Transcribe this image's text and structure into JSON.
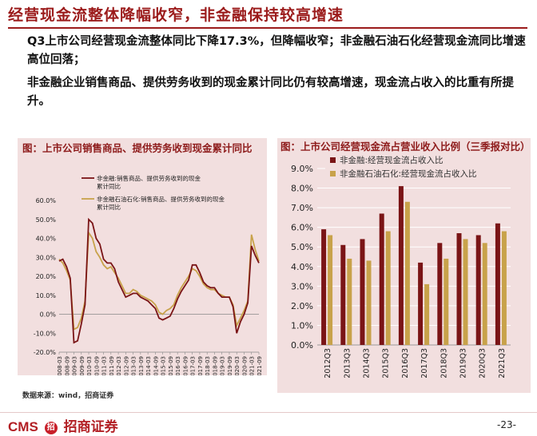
{
  "title": "经营现金流整体降幅收窄，非金融保持较高增速",
  "bullets": [
    "Q3上市公司经营现金流整体同比下降17.3%，但降幅收窄；非金融石油石化经营现金流同比增速高位回落；",
    "非金融企业销售商品、提供劳务收到的现金累计同比仍有较高增速，现金流占收入的比重有所提升。"
  ],
  "colors": {
    "accent": "#9b1b1b",
    "series_dark": "#7a1416",
    "series_gold": "#c8a24a",
    "panel_bg": "#f2dfdf"
  },
  "chart1": {
    "title": "图：上市公司销售商品、提供劳务收到现金累计同比",
    "legend": [
      "非金融:销售商品、提供劳务收到的现金累计同比",
      "非金融石油石化:销售商品、提供劳务收到的现金累计同比"
    ]
  },
  "chart2": {
    "title": "图：上市公司经营现金流占营业收入比例（三季报对比）",
    "legend": [
      "非金融:经营现金流占收入比",
      "非金融石油石化:经营现金流占收入比"
    ]
  },
  "source": "数据来源：wind，招商证券",
  "logo": {
    "cms": "CMS",
    "mark": "招",
    "name": "招商证券"
  },
  "page_number": "-23-",
  "chart_data": [
    {
      "type": "line",
      "title": "图：上市公司销售商品、提供劳务收到现金累计同比",
      "x": [
        "2008-03",
        "2008-06",
        "2008-09",
        "2008-12",
        "2009-03",
        "2009-06",
        "2009-09",
        "2009-12",
        "2010-03",
        "2010-06",
        "2010-09",
        "2010-12",
        "2011-03",
        "2011-06",
        "2011-09",
        "2011-12",
        "2012-03",
        "2012-06",
        "2012-09",
        "2012-12",
        "2013-03",
        "2013-06",
        "2013-09",
        "2013-12",
        "2014-03",
        "2014-06",
        "2014-09",
        "2014-12",
        "2015-03",
        "2015-06",
        "2015-09",
        "2015-12",
        "2016-03",
        "2016-06",
        "2016-09",
        "2016-12",
        "2017-03",
        "2017-06",
        "2017-09",
        "2017-12",
        "2018-03",
        "2018-06",
        "2018-09",
        "2018-12",
        "2019-03",
        "2019-06",
        "2019-09",
        "2019-12",
        "2020-03",
        "2020-06",
        "2020-09",
        "2020-12",
        "2021-03",
        "2021-06",
        "2021-09"
      ],
      "x_ticks": [
        "2008-03",
        "2008-09",
        "2009-03",
        "2009-09",
        "2010-03",
        "2010-09",
        "2011-03",
        "2011-09",
        "2012-03",
        "2012-09",
        "2013-03",
        "2013-09",
        "2014-03",
        "2014-09",
        "2015-03",
        "2015-09",
        "2016-03",
        "2016-09",
        "2017-03",
        "2017-09",
        "2018-03",
        "2018-09",
        "2019-03",
        "2019-09",
        "2020-03",
        "2020-09",
        "2021-03",
        "2021-09"
      ],
      "y_ticks": [
        "-20.0%",
        "-10.0%",
        "0.0%",
        "10.0%",
        "20.0%",
        "30.0%",
        "40.0%",
        "50.0%",
        "60.0%"
      ],
      "ylim": [
        -20,
        60
      ],
      "series": [
        {
          "name": "非金融:销售商品、提供劳务收到的现金累计同比",
          "values": [
            28,
            29,
            25,
            19,
            -15,
            -14,
            -5,
            5,
            50,
            48,
            40,
            37,
            29,
            27,
            27,
            24,
            17,
            13,
            9,
            10,
            11,
            11,
            9,
            8,
            7,
            5,
            3,
            -2,
            -3,
            -2,
            -1,
            3,
            8,
            12,
            15,
            18,
            26,
            26,
            22,
            17,
            15,
            14,
            14,
            11,
            9,
            9,
            9,
            4,
            -10,
            -4,
            0,
            6,
            36,
            31,
            27
          ]
        },
        {
          "name": "非金融石油石化:销售商品、提供劳务收到的现金累计同比",
          "values": [
            29,
            27,
            23,
            18,
            -8,
            -7,
            -2,
            7,
            43,
            40,
            33,
            30,
            26,
            24,
            25,
            22,
            19,
            15,
            11,
            11,
            13,
            12,
            10,
            9,
            8,
            7,
            5,
            1,
            0,
            2,
            3,
            5,
            10,
            14,
            17,
            20,
            24,
            23,
            20,
            16,
            14,
            13,
            13,
            11,
            10,
            9,
            9,
            5,
            -6,
            -2,
            2,
            7,
            42,
            34,
            28
          ]
        }
      ]
    },
    {
      "type": "bar",
      "title": "图：上市公司经营现金流占营业收入比例（三季报对比）",
      "categories": [
        "2012Q3",
        "2013Q3",
        "2014Q3",
        "2015Q3",
        "2016Q3",
        "2017Q3",
        "2018Q3",
        "2019Q3",
        "2020Q3",
        "2021Q3"
      ],
      "y_ticks": [
        "0.0%",
        "1.0%",
        "2.0%",
        "3.0%",
        "4.0%",
        "5.0%",
        "6.0%",
        "7.0%",
        "8.0%",
        "9.0%"
      ],
      "ylim": [
        0,
        9
      ],
      "series": [
        {
          "name": "非金融:经营现金流占收入比",
          "values": [
            5.9,
            5.1,
            5.4,
            6.7,
            8.1,
            4.2,
            5.2,
            5.7,
            5.6,
            6.2
          ]
        },
        {
          "name": "非金融石油石化:经营现金流占收入比",
          "values": [
            5.6,
            4.4,
            4.3,
            5.8,
            7.3,
            3.1,
            4.4,
            5.4,
            5.2,
            5.8
          ]
        }
      ]
    }
  ]
}
